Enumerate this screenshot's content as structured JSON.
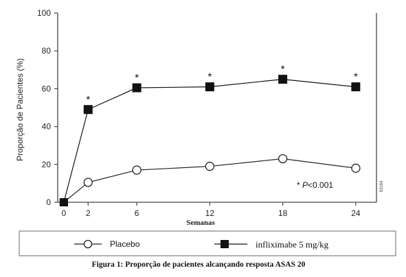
{
  "chart_data": {
    "type": "line",
    "title": "",
    "caption": "Figura 1: Proporção de pacientes alcançando resposta ASAS 20",
    "xlabel": "Semanas",
    "ylabel": "Proporção de Pacientes (%)",
    "x": [
      0,
      2,
      6,
      12,
      18,
      24
    ],
    "x_ticks": [
      "0",
      "2",
      "6",
      "12",
      "18",
      "24"
    ],
    "y_ticks": [
      "0",
      "20",
      "40",
      "60",
      "80",
      "100"
    ],
    "ylim": [
      0,
      100
    ],
    "grid": false,
    "legend_position": "bottom",
    "series": [
      {
        "name": "Placebo",
        "marker": "open-circle",
        "color": "#222222",
        "values": [
          0,
          10.5,
          17,
          19,
          23,
          18
        ]
      },
      {
        "name": "infliximabe 5 mg/kg",
        "marker": "filled-square",
        "color": "#111111",
        "values": [
          0,
          49,
          60.5,
          61,
          65,
          61
        ]
      }
    ],
    "significance_marks": [
      {
        "x": 2,
        "symbol": "*"
      },
      {
        "x": 6,
        "symbol": "*"
      },
      {
        "x": 12,
        "symbol": "*"
      },
      {
        "x": 18,
        "symbol": "*"
      },
      {
        "x": 24,
        "symbol": "*"
      }
    ],
    "annotation": {
      "prefix": "* ",
      "p": "P",
      "rest": "<0.001"
    },
    "side_code": "83184"
  }
}
